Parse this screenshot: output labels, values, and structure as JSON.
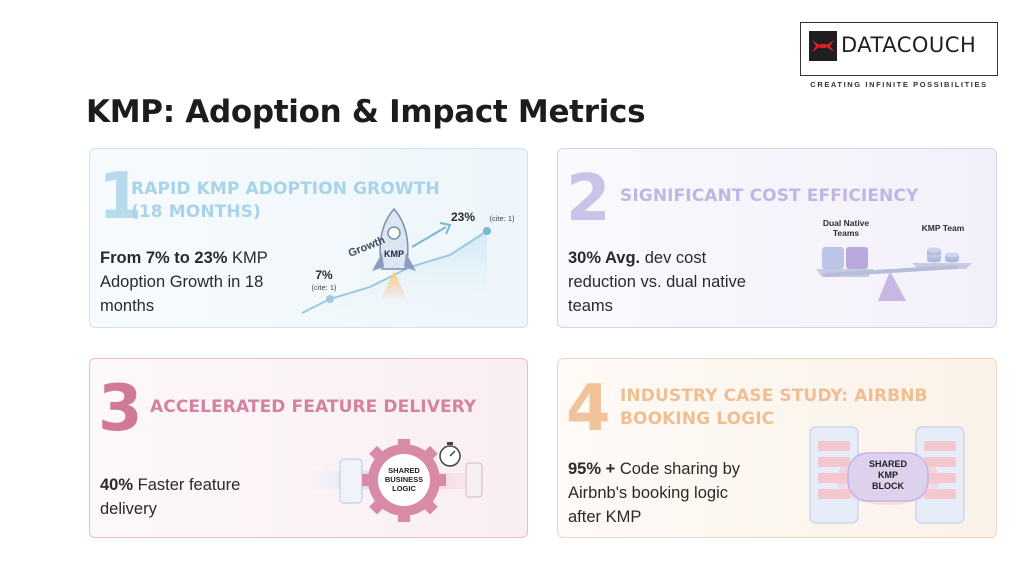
{
  "brand": {
    "logo_text": "DATACOUCH",
    "tagline": "CREATING INFINITE POSSIBILITIES",
    "accent": "#e01f26"
  },
  "slide": {
    "title": "KMP: Adoption & Impact Metrics"
  },
  "cards": [
    {
      "number": "1",
      "heading_line1": "RAPID KMP ADOPTION GROWTH",
      "heading_line2": "(18 MONTHS)",
      "body_strong": "From 7% to 23%",
      "body_rest_1": " KMP",
      "body_line2": "Adoption Growth in 18",
      "body_line3": "months",
      "illustration": {
        "growth_label": "Growth",
        "rocket_label": "KMP",
        "start_value": "7%",
        "start_cite": "(cite: 1)",
        "end_value": "23%",
        "end_cite": "(cite: 1)"
      },
      "color": "#a9d3e8"
    },
    {
      "number": "2",
      "heading_line1": "SIGNIFICANT COST EFFICIENCY",
      "body_strong": "30% Avg.",
      "body_rest_1": " dev cost",
      "body_line2": "reduction vs. dual native",
      "body_line3": "teams",
      "illustration": {
        "left_label_1": "Dual Native",
        "left_label_2": "Teams",
        "right_label": "KMP Team"
      },
      "color": "#c9bfe6"
    },
    {
      "number": "3",
      "heading_line1": "ACCELERATED FEATURE DELIVERY",
      "body_strong": "40%",
      "body_rest_1": " Faster feature",
      "body_line2": "delivery",
      "illustration": {
        "gear_label_1": "SHARED",
        "gear_label_2": "BUSINESS",
        "gear_label_3": "LOGIC"
      },
      "color": "#d987a4"
    },
    {
      "number": "4",
      "heading_line1": "INDUSTRY CASE STUDY: AIRBNB",
      "heading_line2": "BOOKING LOGIC",
      "body_strong": "95% +",
      "body_rest_1": " Code sharing by",
      "body_line2": "Airbnb's booking logic",
      "body_line3": "after KMP",
      "illustration": {
        "block_label_1": "SHARED",
        "block_label_2": "KMP",
        "block_label_3": "BLOCK"
      },
      "color": "#f0c397"
    }
  ]
}
